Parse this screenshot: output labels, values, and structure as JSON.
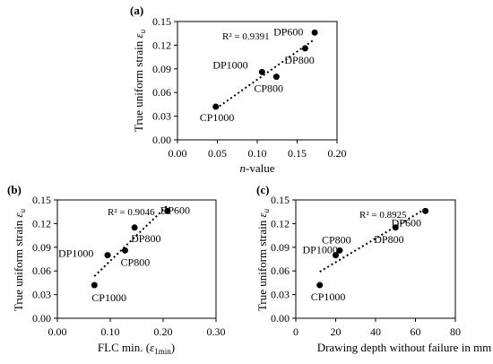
{
  "chart_data": [
    {
      "type": "scatter",
      "panel_label": "(a)",
      "xlabel": "n-value",
      "xlabel_italic_prefix": "n",
      "xlabel_suffix": "-value",
      "ylabel": "True uniform strain εu",
      "ylabel_main": "True uniform strain ",
      "ylabel_symbol": "ε",
      "ylabel_sub": "u",
      "xlim": [
        0.0,
        0.2
      ],
      "ylim": [
        0.0,
        0.15
      ],
      "x_ticks": [
        "0.00",
        "0.05",
        "0.10",
        "0.15",
        "0.20"
      ],
      "y_ticks": [
        "0.00",
        "0.03",
        "0.06",
        "0.09",
        "0.12",
        "0.15"
      ],
      "r2_label": "R² = 0.9391",
      "trendline": "linear",
      "points": [
        {
          "label": "CP1000",
          "x": 0.048,
          "y": 0.042
        },
        {
          "label": "DP1000",
          "x": 0.106,
          "y": 0.086
        },
        {
          "label": "CP800",
          "x": 0.124,
          "y": 0.08
        },
        {
          "label": "DP800",
          "x": 0.16,
          "y": 0.116
        },
        {
          "label": "DP600",
          "x": 0.172,
          "y": 0.136
        }
      ]
    },
    {
      "type": "scatter",
      "panel_label": "(b)",
      "xlabel": "FLC min. (ε1min)",
      "xlabel_main": "FLC min. (",
      "xlabel_symbol": "ε",
      "xlabel_sub": "1min",
      "xlabel_close": ")",
      "ylabel": "True uniform strain εu",
      "ylabel_main": "True uniform strain ",
      "ylabel_symbol": "ε",
      "ylabel_sub": "u",
      "xlim": [
        0.0,
        0.3
      ],
      "ylim": [
        0.0,
        0.15
      ],
      "x_ticks": [
        "0.00",
        "0.10",
        "0.20",
        "0.30"
      ],
      "y_ticks": [
        "0.00",
        "0.03",
        "0.06",
        "0.09",
        "0.12",
        "0.15"
      ],
      "r2_label": "R² = 0.9046",
      "trendline": "linear",
      "points": [
        {
          "label": "CP1000",
          "x": 0.07,
          "y": 0.042
        },
        {
          "label": "DP1000",
          "x": 0.095,
          "y": 0.08
        },
        {
          "label": "CP800",
          "x": 0.128,
          "y": 0.086
        },
        {
          "label": "DP800",
          "x": 0.146,
          "y": 0.115
        },
        {
          "label": "DP600",
          "x": 0.208,
          "y": 0.136
        }
      ]
    },
    {
      "type": "scatter",
      "panel_label": "(c)",
      "xlabel": "Drawing depth without failure in mm",
      "ylabel": "True uniform strain εu",
      "ylabel_main": "True uniform strain ",
      "ylabel_symbol": "ε",
      "ylabel_sub": "u",
      "xlim": [
        0,
        80
      ],
      "ylim": [
        0.0,
        0.15
      ],
      "x_ticks": [
        "0",
        "20",
        "40",
        "60",
        "80"
      ],
      "y_ticks": [
        "0.00",
        "0.03",
        "0.06",
        "0.09",
        "0.12",
        "0.15"
      ],
      "r2_label": "R² = 0.8925",
      "trendline": "linear",
      "points": [
        {
          "label": "CP1000",
          "x": 12,
          "y": 0.042
        },
        {
          "label": "DP1000",
          "x": 20,
          "y": 0.08
        },
        {
          "label": "CP800",
          "x": 22,
          "y": 0.086
        },
        {
          "label": "DP800",
          "x": 50,
          "y": 0.115
        },
        {
          "label": "DP600",
          "x": 65,
          "y": 0.136
        }
      ]
    }
  ]
}
